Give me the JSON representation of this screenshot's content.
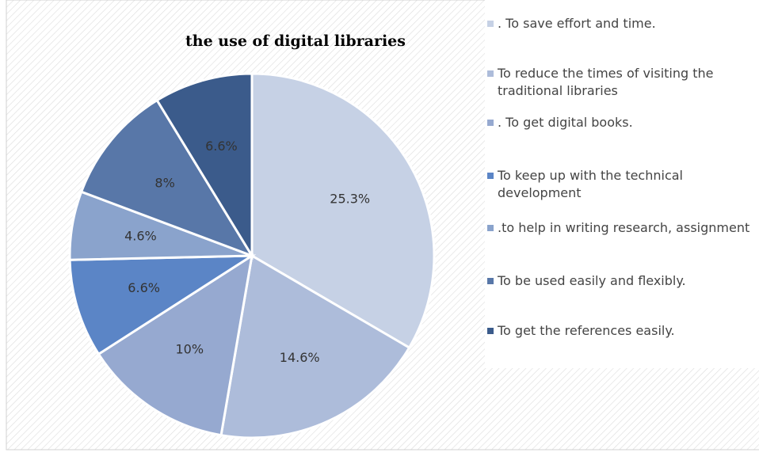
{
  "chart_data": {
    "type": "pie",
    "title": "the use of digital libraries",
    "categories": [
      ". To save effort and time.",
      "To reduce the times of visiting the traditional libraries",
      ". To get digital books.",
      "To keep up with the technical development",
      ".to help in writing research, assignment",
      "To be used easily and flexibly.",
      "To get the references easily."
    ],
    "values": [
      25.3,
      14.6,
      10,
      6.6,
      4.6,
      8,
      6.6
    ],
    "value_labels": [
      "25.3%",
      "14.6%",
      "10%",
      "6.6%",
      "4.6%",
      "8%",
      "6.6%"
    ],
    "colors": [
      "#c6d1e5",
      "#adbcda",
      "#96a9d0",
      "#5b85c6",
      "#8aa3cc",
      "#5877a8",
      "#3b5b8b"
    ],
    "legend": "right"
  }
}
